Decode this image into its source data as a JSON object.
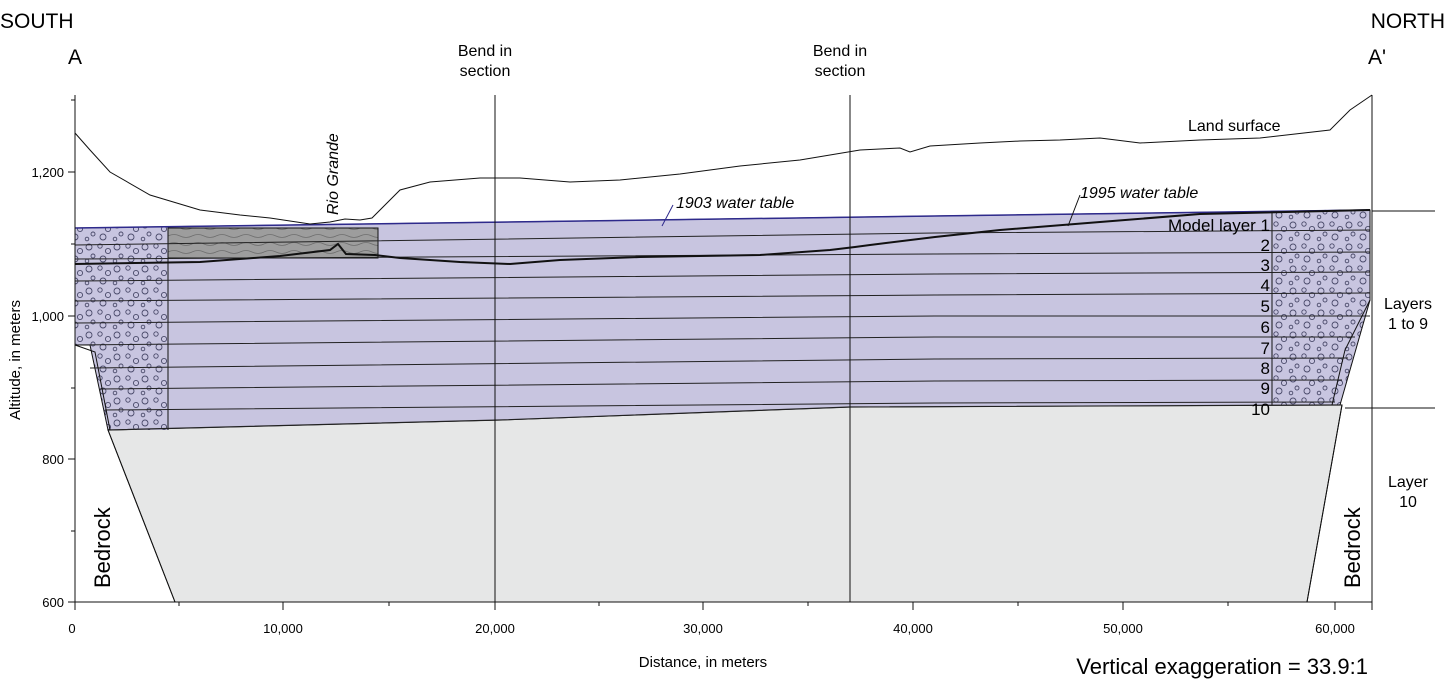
{
  "header": {
    "south": "SOUTH",
    "north": "NORTH",
    "point_a": "A",
    "point_a_prime": "A'"
  },
  "bends": [
    {
      "line1": "Bend in",
      "line2": "section",
      "distance_m": 20000
    },
    {
      "line1": "Bend in",
      "line2": "section",
      "distance_m": 37000
    }
  ],
  "labels": {
    "rio_grande": "Rio Grande",
    "land_surface": "Land surface",
    "water_table_1903": "1903 water table",
    "water_table_1995": "1995 water table",
    "bedrock_left": "Bedrock",
    "bedrock_right": "Bedrock",
    "layers_1_9_line1": "Layers",
    "layers_1_9_line2": "1 to 9",
    "layer_10_line1": "Layer",
    "layer_10_line2": "10",
    "vertical_exaggeration": "Vertical exaggeration = 33.9:1"
  },
  "model_layers": [
    "Model layer 1",
    "2",
    "3",
    "4",
    "5",
    "6",
    "7",
    "8",
    "9",
    "10"
  ],
  "axes": {
    "ylabel": "Altitude, in meters",
    "xlabel": "Distance, in meters",
    "y_ticks": [
      "1,200",
      "1,000",
      "800",
      "600"
    ],
    "x_ticks": [
      "0",
      "10,000",
      "20,000",
      "30,000",
      "40,000",
      "50,000",
      "60,000"
    ]
  },
  "colors": {
    "aquifer_fill": "#c8c5e0",
    "bedrock_fill": "#e6e7e7",
    "river_fill": "#9d9d9d",
    "water_table_1903": "#2e2a8c"
  }
}
